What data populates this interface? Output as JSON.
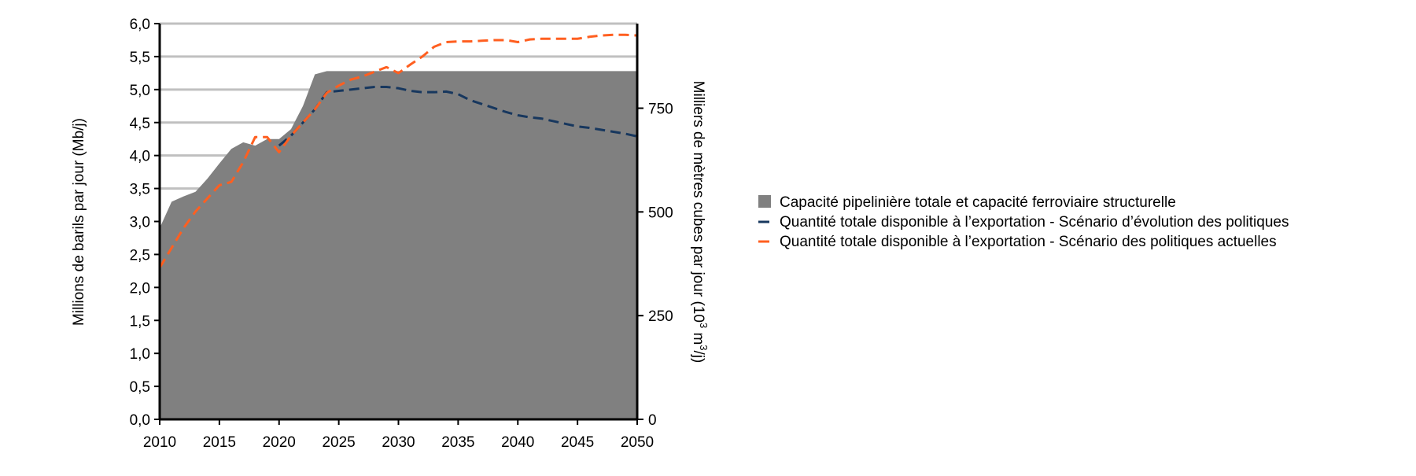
{
  "chart_data": {
    "type": "area",
    "ylabel": "Millions de barils par jour (Mb/j)",
    "y2label": "Milliers de mètres cubes par jour (10",
    "y2label_sup1": "3",
    "y2label_mid": " m",
    "y2label_sup2": "3",
    "y2label_end": "/j)",
    "xlim": [
      2010,
      2050
    ],
    "ylim": [
      0,
      6
    ],
    "y2lim": [
      0,
      953.9
    ],
    "x_ticks": [
      "2010",
      "2015",
      "2020",
      "2025",
      "2030",
      "2035",
      "2040",
      "2045",
      "2050"
    ],
    "x_tick_values": [
      2010,
      2015,
      2020,
      2025,
      2030,
      2035,
      2040,
      2045,
      2050
    ],
    "y_ticks": [
      "0,0",
      "0,5",
      "1,0",
      "1,5",
      "2,0",
      "2,5",
      "3,0",
      "3,5",
      "4,0",
      "4,5",
      "5,0",
      "5,5",
      "6,0"
    ],
    "y_tick_values": [
      0,
      0.5,
      1,
      1.5,
      2,
      2.5,
      3,
      3.5,
      4,
      4.5,
      5,
      5.5,
      6
    ],
    "y2_ticks": [
      "0",
      "250",
      "500",
      "750"
    ],
    "y2_tick_values": [
      0,
      250,
      500,
      750
    ],
    "gridlines": [
      3.5,
      4.0,
      4.5,
      5.0,
      5.5,
      6.0
    ],
    "series": [
      {
        "name": "Capacité pipelinière totale et capacité ferroviaire structurelle",
        "kind": "area",
        "color": "#808080",
        "x": [
          2010,
          2011,
          2012,
          2013,
          2014,
          2015,
          2016,
          2017,
          2018,
          2019,
          2020,
          2021,
          2022,
          2023,
          2024,
          2025,
          2030,
          2035,
          2040,
          2045,
          2050
        ],
        "values": [
          2.9,
          3.3,
          3.38,
          3.45,
          3.65,
          3.88,
          4.1,
          4.2,
          4.15,
          4.25,
          4.25,
          4.4,
          4.75,
          5.23,
          5.28,
          5.28,
          5.28,
          5.28,
          5.28,
          5.28,
          5.28
        ]
      },
      {
        "name": "Quantité totale disponible à l’exportation - Scénario d’évolution des politiques",
        "kind": "line",
        "dash": "dashed",
        "color": "#17375e",
        "x": [
          2020,
          2021,
          2022,
          2023,
          2024,
          2025,
          2026,
          2027,
          2028,
          2029,
          2030,
          2031,
          2032,
          2033,
          2034,
          2035,
          2036,
          2037,
          2038,
          2039,
          2040,
          2041,
          2042,
          2043,
          2044,
          2045,
          2046,
          2047,
          2048,
          2049,
          2050
        ],
        "values": [
          4.15,
          4.3,
          4.5,
          4.7,
          4.96,
          4.98,
          5.0,
          5.02,
          5.04,
          5.04,
          5.02,
          4.98,
          4.96,
          4.96,
          4.97,
          4.93,
          4.84,
          4.78,
          4.72,
          4.66,
          4.61,
          4.58,
          4.56,
          4.52,
          4.48,
          4.44,
          4.42,
          4.39,
          4.36,
          4.33,
          4.29
        ]
      },
      {
        "name": "Quantité totale disponible à l’exportation - Scénario des politiques actuelles",
        "kind": "line",
        "dash": "dashed",
        "color": "#ff5f20",
        "x": [
          2010,
          2011,
          2012,
          2013,
          2014,
          2015,
          2016,
          2017,
          2018,
          2019,
          2020,
          2021,
          2022,
          2023,
          2024,
          2025,
          2026,
          2027,
          2028,
          2029,
          2030,
          2031,
          2032,
          2033,
          2034,
          2035,
          2036,
          2037,
          2038,
          2039,
          2040,
          2041,
          2042,
          2043,
          2044,
          2045,
          2046,
          2047,
          2048,
          2049,
          2050
        ],
        "values": [
          2.3,
          2.6,
          2.9,
          3.15,
          3.35,
          3.55,
          3.6,
          3.9,
          4.28,
          4.28,
          4.05,
          4.3,
          4.5,
          4.7,
          4.95,
          5.06,
          5.15,
          5.2,
          5.27,
          5.34,
          5.25,
          5.38,
          5.5,
          5.65,
          5.72,
          5.73,
          5.73,
          5.74,
          5.75,
          5.75,
          5.72,
          5.76,
          5.77,
          5.77,
          5.77,
          5.77,
          5.8,
          5.82,
          5.83,
          5.83,
          5.82
        ]
      }
    ]
  }
}
